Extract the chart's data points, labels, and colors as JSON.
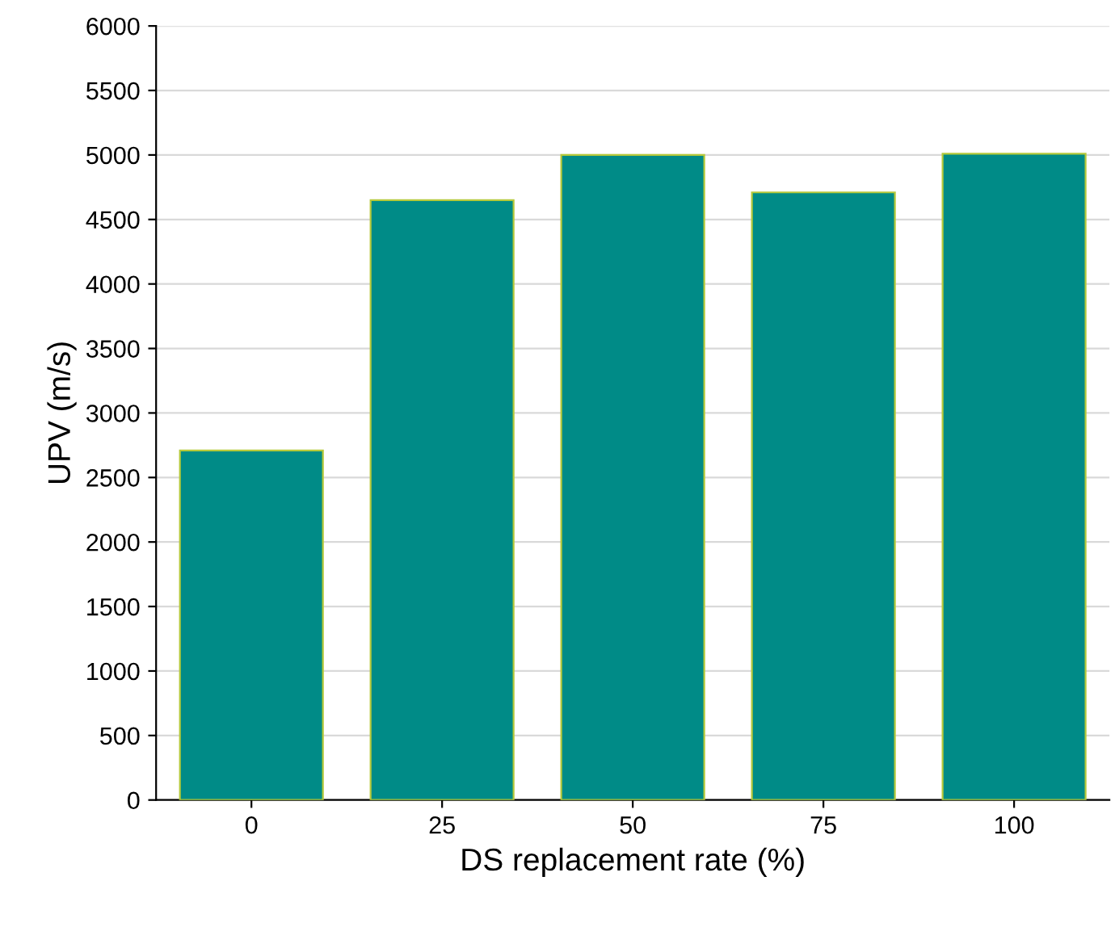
{
  "chart_data": {
    "type": "bar",
    "xlabel": "DS replacement rate (%)",
    "ylabel": "UPV (m/s)",
    "categories": [
      "0",
      "25",
      "50",
      "75",
      "100"
    ],
    "series": [
      {
        "color": "#008b87",
        "values": [
          2710,
          4650,
          5000,
          4710,
          5010
        ]
      }
    ],
    "ylim": [
      0,
      6000
    ],
    "yticks": [
      0,
      500,
      1000,
      1500,
      2000,
      2500,
      3000,
      3500,
      4000,
      4500,
      5000,
      5500,
      6000
    ],
    "grid": "y"
  }
}
